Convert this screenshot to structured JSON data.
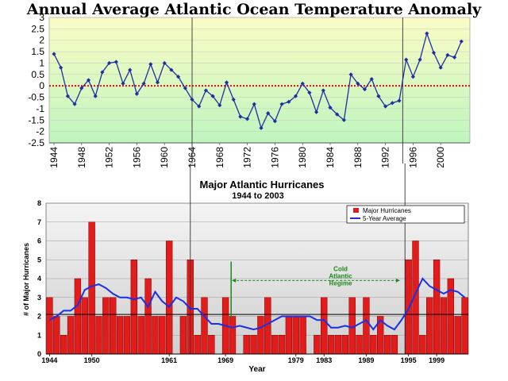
{
  "chart_data": [
    {
      "type": "line",
      "title": "Annual Average Atlantic Ocean Temperature Anomaly",
      "xlabel": "",
      "ylabel": "",
      "ylim": [
        -2.5,
        3
      ],
      "yticks": [
        "3",
        "2.5",
        "2",
        "1.5",
        "1",
        "0.5",
        "0",
        "-0.5",
        "-1",
        "-1.5",
        "-2",
        "-2.5"
      ],
      "xticks": [
        "1944",
        "1948",
        "1952",
        "1956",
        "1960",
        "1964",
        "1968",
        "1972",
        "1976",
        "1980",
        "1984",
        "1988",
        "1992",
        "1996",
        "2000"
      ],
      "reference_line": 0,
      "background": {
        "top": "#fbfbc4",
        "bottom": "#bff5bf"
      },
      "line_color": "#1f2fa3",
      "markers": [
        1964,
        1994.5
      ],
      "years": [
        1944,
        1945,
        1946,
        1947,
        1948,
        1949,
        1950,
        1951,
        1952,
        1953,
        1954,
        1955,
        1956,
        1957,
        1958,
        1959,
        1960,
        1961,
        1962,
        1963,
        1964,
        1965,
        1966,
        1967,
        1968,
        1969,
        1970,
        1971,
        1972,
        1973,
        1974,
        1975,
        1976,
        1977,
        1978,
        1979,
        1980,
        1981,
        1982,
        1983,
        1984,
        1985,
        1986,
        1987,
        1988,
        1989,
        1990,
        1991,
        1992,
        1993,
        1994,
        1995,
        1996,
        1997,
        1998,
        1999,
        2000,
        2001,
        2002,
        2003
      ],
      "values": [
        1.4,
        0.8,
        -0.45,
        -0.8,
        -0.1,
        0.25,
        -0.45,
        0.6,
        1.0,
        1.05,
        0.1,
        0.7,
        -0.35,
        0.1,
        0.95,
        0.15,
        1.0,
        0.7,
        0.4,
        -0.1,
        -0.6,
        -0.9,
        -0.2,
        -0.45,
        -0.85,
        0.15,
        -0.6,
        -1.35,
        -1.45,
        -0.8,
        -1.85,
        -1.2,
        -1.55,
        -0.8,
        -0.7,
        -0.45,
        0.1,
        -0.3,
        -1.15,
        -0.2,
        -0.95,
        -1.25,
        -1.5,
        0.5,
        0.1,
        -0.15,
        0.3,
        -0.45,
        -0.9,
        -0.75,
        -0.65,
        1.15,
        0.4,
        1.15,
        2.3,
        1.45,
        0.8,
        1.35,
        1.25,
        1.95
      ]
    },
    {
      "type": "bar",
      "title": "Major Atlantic Hurricanes",
      "subtitle": "1944 to 2003",
      "xlabel": "Year",
      "ylabel": "# of Major Hurricanes",
      "ylim": [
        0,
        8
      ],
      "yticks": [
        "0",
        "1",
        "2",
        "3",
        "4",
        "5",
        "6",
        "7",
        "8"
      ],
      "xticks": [
        {
          "year": 1944,
          "label": "1944"
        },
        {
          "year": 1950,
          "label": "1950"
        },
        {
          "year": 1961,
          "label": "1961"
        },
        {
          "year": 1969,
          "label": "1969"
        },
        {
          "year": 1979,
          "label": "1979"
        },
        {
          "year": 1983,
          "label": "1983"
        },
        {
          "year": 1989,
          "label": "1989"
        },
        {
          "year": 1995,
          "label": "1995"
        },
        {
          "year": 1999,
          "label": "1999"
        }
      ],
      "legend_position": "top-right",
      "legend": [
        {
          "name": "Major Hurricanes",
          "color": "#e21b1b"
        },
        {
          "name": "5-Year Average",
          "color": "#1a2fe6"
        }
      ],
      "annotation": "Cold Atlantic Regime",
      "annotation_range": [
        1970,
        1994
      ],
      "reference_line": 2.1,
      "markers": [
        1964,
        1994.5
      ],
      "years": [
        1944,
        1945,
        1946,
        1947,
        1948,
        1949,
        1950,
        1951,
        1952,
        1953,
        1954,
        1955,
        1956,
        1957,
        1958,
        1959,
        1960,
        1961,
        1962,
        1963,
        1964,
        1965,
        1966,
        1967,
        1968,
        1969,
        1970,
        1971,
        1972,
        1973,
        1974,
        1975,
        1976,
        1977,
        1978,
        1979,
        1980,
        1981,
        1982,
        1983,
        1984,
        1985,
        1986,
        1987,
        1988,
        1989,
        1990,
        1991,
        1992,
        1993,
        1994,
        1995,
        1996,
        1997,
        1998,
        1999,
        2000,
        2001,
        2002,
        2003
      ],
      "series": [
        {
          "name": "Major Hurricanes",
          "values": [
            3,
            2,
            1,
            2,
            4,
            3,
            7,
            2,
            3,
            3,
            2,
            2,
            5,
            2,
            4,
            2,
            2,
            6,
            0,
            2,
            5,
            1,
            3,
            1,
            0,
            3,
            2,
            0,
            1,
            1,
            2,
            3,
            1,
            1,
            2,
            2,
            2,
            0,
            1,
            3,
            1,
            1,
            1,
            3,
            1,
            3,
            1,
            2,
            1,
            1,
            0,
            5,
            6,
            1,
            3,
            5,
            3,
            4,
            2,
            3
          ]
        },
        {
          "name": "5-Year Average",
          "values": [
            1.8,
            2.0,
            2.3,
            2.3,
            2.6,
            3.4,
            3.6,
            3.7,
            3.5,
            3.2,
            3.0,
            3.0,
            2.9,
            3.0,
            2.5,
            3.3,
            2.8,
            2.5,
            3.0,
            2.8,
            2.4,
            2.4,
            2.0,
            1.6,
            1.6,
            1.5,
            1.4,
            1.5,
            1.4,
            1.3,
            1.4,
            1.6,
            1.8,
            2.0,
            2.0,
            2.0,
            2.0,
            2.0,
            1.8,
            1.8,
            1.4,
            1.4,
            1.5,
            1.4,
            1.6,
            1.8,
            1.3,
            1.8,
            1.5,
            1.3,
            1.8,
            2.4,
            3.2,
            4.0,
            3.6,
            3.4,
            3.2,
            3.4,
            3.3,
            3.0
          ]
        }
      ]
    }
  ]
}
